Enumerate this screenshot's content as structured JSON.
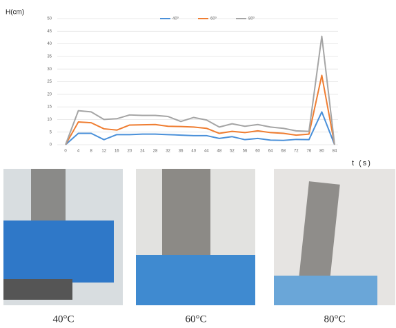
{
  "chart_data": {
    "type": "line",
    "y_label": "H(cm)",
    "x_label": "t (s)",
    "x": [
      0,
      4,
      8,
      12,
      16,
      20,
      24,
      28,
      32,
      36,
      40,
      44,
      48,
      52,
      56,
      60,
      64,
      68,
      72,
      76,
      80,
      84
    ],
    "xlim": [
      0,
      84
    ],
    "xticks": [
      0,
      4,
      8,
      12,
      16,
      20,
      24,
      28,
      32,
      36,
      40,
      44,
      48,
      52,
      56,
      60,
      64,
      68,
      72,
      76,
      80,
      84
    ],
    "ylim": [
      0,
      50
    ],
    "yticks": [
      0,
      5,
      10,
      15,
      20,
      25,
      30,
      35,
      40,
      45,
      50
    ],
    "grid": true,
    "legend": "top",
    "series": [
      {
        "name": "40º",
        "color": "#4a90d9",
        "values": [
          0,
          4.5,
          4.5,
          2,
          4,
          4,
          4.2,
          4.2,
          4,
          3.8,
          3.6,
          3.6,
          2.5,
          3.2,
          2,
          2.5,
          1.8,
          1.7,
          2.1,
          2,
          13,
          0
        ]
      },
      {
        "name": "60º",
        "color": "#ef7d31",
        "values": [
          0,
          9,
          8.7,
          6.3,
          5.8,
          7.8,
          7.9,
          8,
          7.3,
          7.2,
          7,
          6.5,
          4.5,
          5.3,
          4.8,
          5.5,
          4.8,
          4.5,
          3.8,
          4.2,
          27.5,
          0
        ]
      },
      {
        "name": "80º",
        "color": "#a5a5a5",
        "values": [
          0,
          13.5,
          13,
          10,
          10.3,
          11.8,
          11.6,
          11.6,
          11.2,
          9.2,
          10.8,
          9.8,
          7,
          8.3,
          7.3,
          8,
          7,
          6.5,
          5.5,
          5.3,
          43,
          0
        ]
      }
    ]
  },
  "captions": [
    "40°C",
    "60°C",
    "80°C"
  ]
}
